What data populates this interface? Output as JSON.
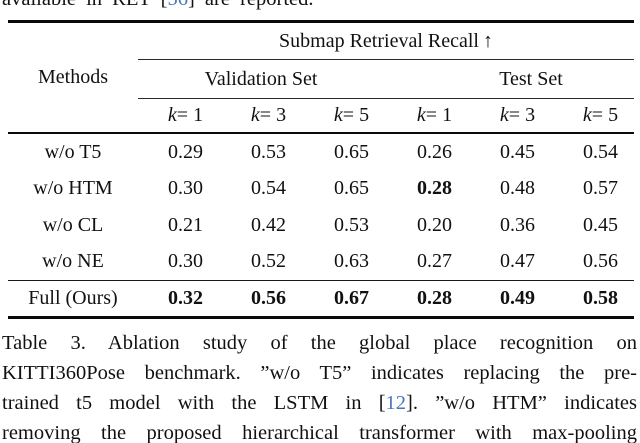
{
  "top_line": {
    "pre": "available in RET [",
    "citation": "56",
    "post": "] are reported."
  },
  "table": {
    "title": "Submap Retrieval Recall",
    "up_arrow": "↑",
    "methods_header": "Methods",
    "groups": [
      {
        "label": "Validation Set"
      },
      {
        "label": "Test Set"
      }
    ],
    "columns": [
      {
        "var": "k",
        "rel": " = 1"
      },
      {
        "var": "k",
        "rel": " = 3"
      },
      {
        "var": "k",
        "rel": " = 5"
      },
      {
        "var": "k",
        "rel": " = 1"
      },
      {
        "var": "k",
        "rel": " = 3"
      },
      {
        "var": "k",
        "rel": " = 5"
      }
    ],
    "rows": [
      {
        "label": "w/o T5",
        "values": [
          "0.29",
          "0.53",
          "0.65",
          "0.26",
          "0.45",
          "0.54"
        ],
        "bold_indices": []
      },
      {
        "label": "w/o HTM",
        "values": [
          "0.30",
          "0.54",
          "0.65",
          "0.28",
          "0.48",
          "0.57"
        ],
        "bold_indices": [
          3
        ]
      },
      {
        "label": "w/o CL",
        "values": [
          "0.21",
          "0.42",
          "0.53",
          "0.20",
          "0.36",
          "0.45"
        ],
        "bold_indices": []
      },
      {
        "label": "w/o NE",
        "values": [
          "0.30",
          "0.52",
          "0.63",
          "0.27",
          "0.47",
          "0.56"
        ],
        "bold_indices": []
      },
      {
        "label": "Full (Ours)",
        "values": [
          "0.32",
          "0.56",
          "0.67",
          "0.28",
          "0.49",
          "0.58"
        ],
        "bold_indices": [
          0,
          1,
          2,
          3,
          4,
          5
        ]
      }
    ]
  },
  "caption": {
    "line1": "Table 3.  Ablation study of the global place recognition on",
    "line2": "KITTI360Pose benchmark. ”w/o T5” indicates replacing the pre-",
    "line3_pre": "trained t5 model with the LSTM in  [",
    "line3_citation": "12",
    "line3_post": "].  ”w/o HTM” indicates",
    "line4": "removing the proposed hierarchical transformer with max-pooling"
  },
  "colors": {
    "citation_blue": "#4679b9",
    "text": "#111111",
    "background": "#ffffff"
  }
}
